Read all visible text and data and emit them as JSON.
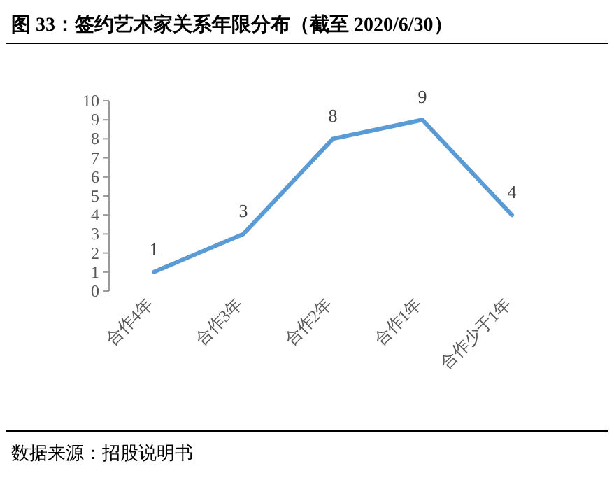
{
  "chart_data": {
    "type": "line",
    "title": "图 33：签约艺术家关系年限分布（截至 2020/6/30）",
    "categories": [
      "合作4年",
      "合作3年",
      "合作2年",
      "合作1年",
      "合作少于1年"
    ],
    "series": [
      {
        "color": "#5b9bd5",
        "values": [
          1,
          3,
          8,
          9,
          4
        ]
      }
    ],
    "ylim": [
      0,
      10
    ],
    "yticks": [
      0,
      1,
      2,
      3,
      4,
      5,
      6,
      7,
      8,
      9,
      10
    ],
    "data_labels": true,
    "annotations": [
      "数据来源：招股说明书"
    ]
  }
}
